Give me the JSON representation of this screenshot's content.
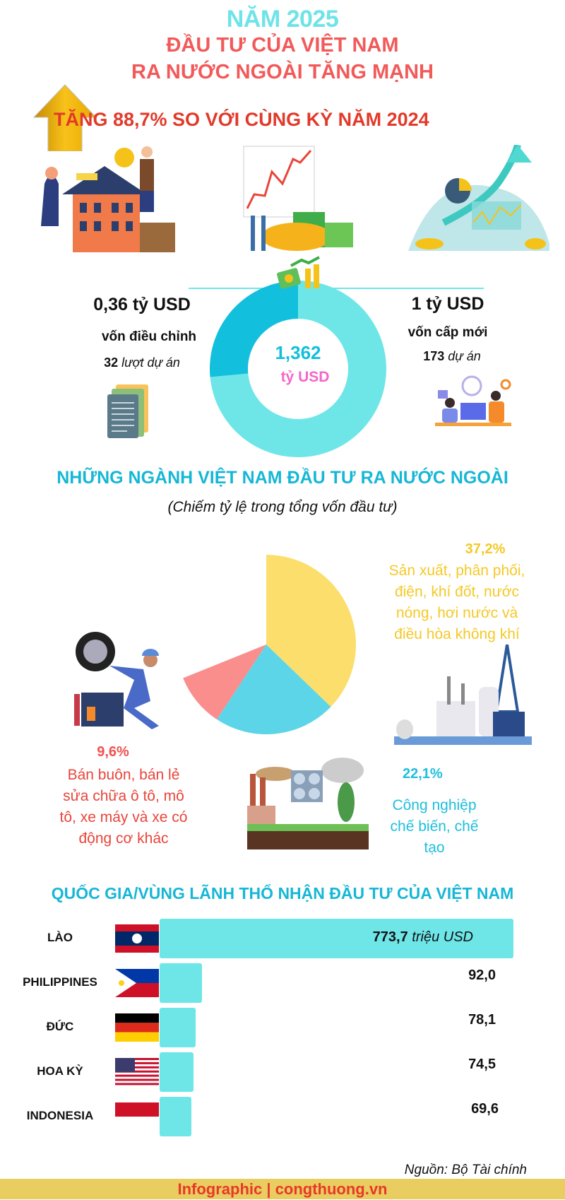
{
  "header": {
    "year_title": "NĂM 2025",
    "title_line1": "ĐẦU TƯ CỦA VIỆT NAM",
    "title_line2": "RA NƯỚC NGOÀI TĂNG MẠNH",
    "growth": "TĂNG 88,7% SO VỚI CÙNG KỲ NĂM 2024"
  },
  "capital": {
    "total_value": "1,362",
    "total_unit": "tỷ USD",
    "adjusted": {
      "amount": "0,36 tỷ USD",
      "label": "vốn điều chỉnh",
      "count": "32",
      "count_label": "lượt dự án",
      "value": 0.36
    },
    "new": {
      "amount": "1 tỷ USD",
      "label": "vốn cấp mới",
      "count": "173",
      "count_label": "dự án",
      "value": 1.0
    },
    "colors": {
      "adjusted": "#12bfdc",
      "new": "#6ee6e8"
    }
  },
  "sectors": {
    "title": "NHỮNG NGÀNH VIỆT NAM ĐẦU TƯ RA NƯỚC NGOÀI",
    "subtitle": "(Chiếm tỷ lệ trong tổng vốn đầu tư)",
    "items": [
      {
        "pct_label": "37,2%",
        "value": 37.2,
        "lines": [
          "Sản xuất, phân phối,",
          "điện, khí đốt, nước",
          "nóng, hơi nước và",
          "điều hòa không khí"
        ],
        "color": "#fbde6c",
        "text_color": "#f4c928"
      },
      {
        "pct_label": "22,1%",
        "value": 22.1,
        "lines": [
          "Công nghiệp",
          "chế biến, chế",
          "tạo"
        ],
        "color": "#5dd5e8",
        "text_color": "#1ebfdc"
      },
      {
        "pct_label": "9,6%",
        "value": 9.6,
        "lines": [
          "Bán buôn, bán lẻ",
          "sửa chữa ô tô, mô",
          "tô, xe máy và xe có",
          "động cơ khác"
        ],
        "color": "#f98e8c",
        "text_color": "#e8453a"
      }
    ]
  },
  "countries": {
    "title": "QUỐC GIA/VÙNG LÃNH THỔ NHẬN ĐẦU TƯ CỦA VIỆT NAM",
    "unit": "triệu USD",
    "items": [
      {
        "name": "LÀO",
        "value": 773.7,
        "label": "773,7",
        "flag": "laos-flag"
      },
      {
        "name": "PHILIPPINES",
        "value": 92.0,
        "label": "92,0",
        "flag": "philippines-flag"
      },
      {
        "name": "ĐỨC",
        "value": 78.1,
        "label": "78,1",
        "flag": "germany-flag"
      },
      {
        "name": "HOA KỲ",
        "value": 74.5,
        "label": "74,5",
        "flag": "usa-flag"
      },
      {
        "name": "INDONESIA",
        "value": 69.6,
        "label": "69,6",
        "flag": "indonesia-flag"
      }
    ],
    "bar_color": "#6ee6e8"
  },
  "source": "Nguồn: Bộ Tài chính",
  "footer": "Infographic | congthuong.vn"
}
